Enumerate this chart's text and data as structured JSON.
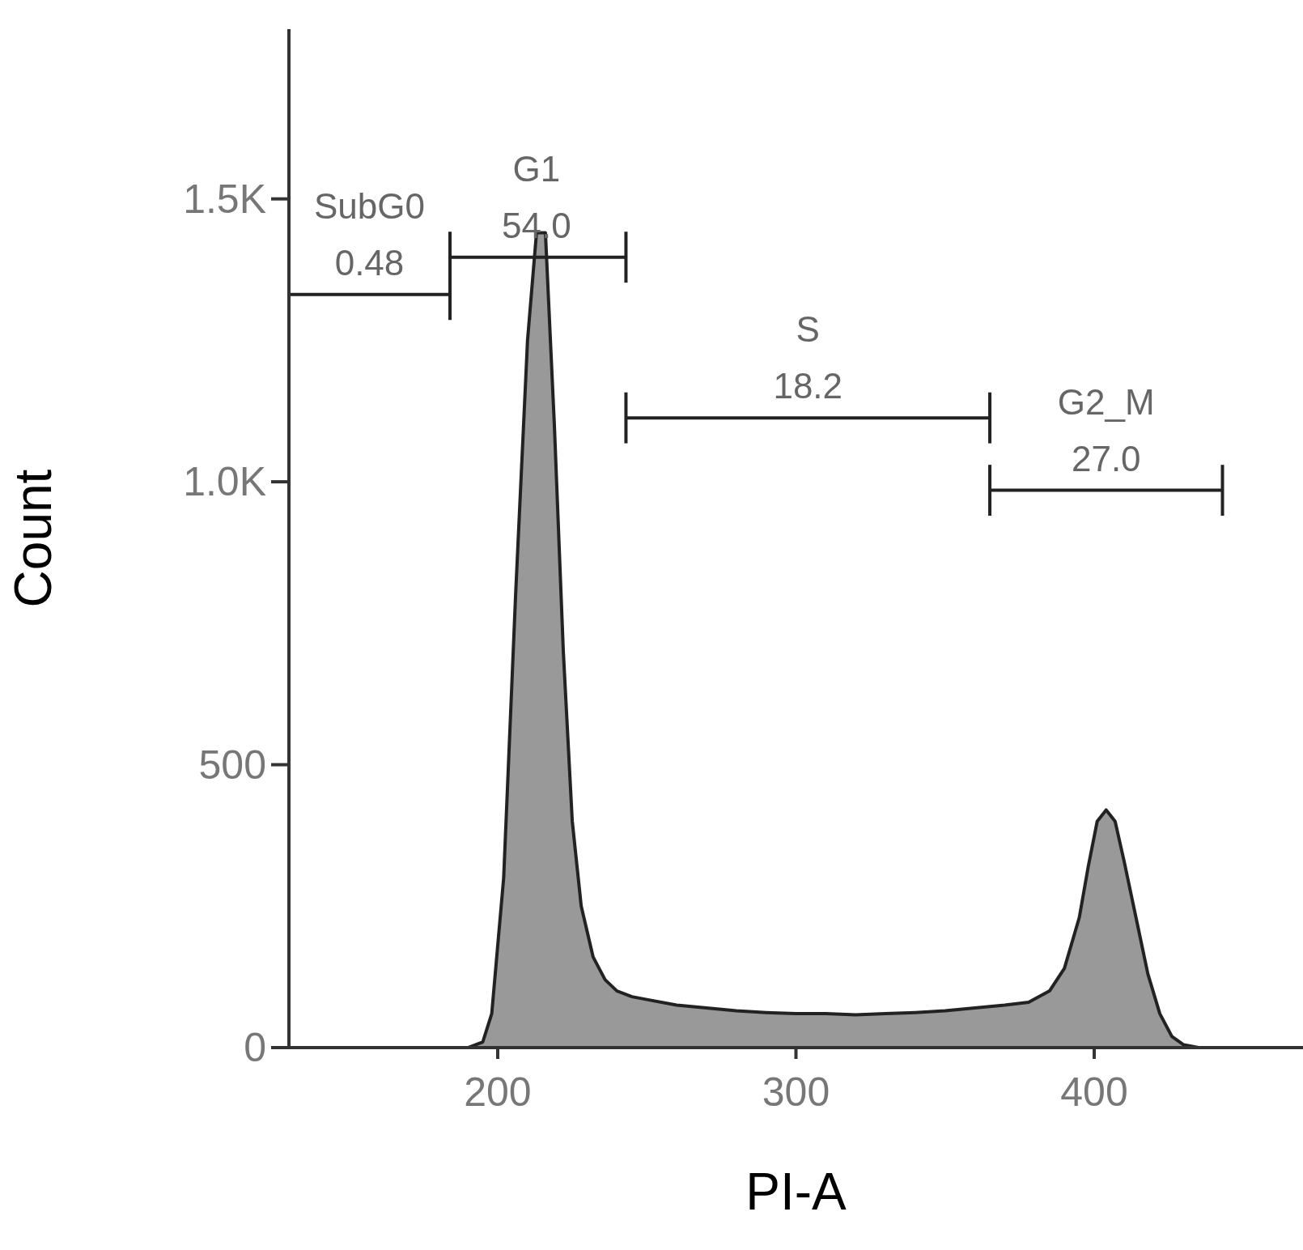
{
  "chart_data": {
    "type": "area",
    "xlabel": "PI-A",
    "ylabel": "Count",
    "x": [
      130,
      190,
      195,
      198,
      202,
      206,
      210,
      213,
      216,
      219,
      222,
      225,
      228,
      232,
      236,
      240,
      245,
      250,
      260,
      270,
      280,
      290,
      300,
      310,
      320,
      330,
      340,
      350,
      360,
      370,
      378,
      385,
      390,
      395,
      398,
      401,
      404,
      407,
      410,
      414,
      418,
      422,
      426,
      430,
      435,
      470
    ],
    "values": [
      0,
      0,
      10,
      60,
      300,
      800,
      1250,
      1440,
      1440,
      1100,
      700,
      400,
      250,
      160,
      120,
      100,
      90,
      85,
      75,
      70,
      65,
      62,
      60,
      60,
      58,
      60,
      62,
      65,
      70,
      75,
      80,
      100,
      140,
      230,
      320,
      400,
      420,
      400,
      330,
      230,
      130,
      60,
      20,
      5,
      0,
      0
    ],
    "color": "#999999",
    "series": [
      {
        "type": "line",
        "x": [
          130,
          184
        ],
        "values": [
          1331,
          1331
        ],
        "errors": [
          null,
          45
        ],
        "color": "#222222"
      },
      {
        "type": "line",
        "x": [
          184,
          243
        ],
        "values": [
          1397,
          1397
        ],
        "errors": [
          45,
          45
        ],
        "color": "#222222"
      },
      {
        "type": "line",
        "x": [
          243,
          365
        ],
        "values": [
          1113,
          1113
        ],
        "errors": [
          45,
          45
        ],
        "color": "#222222"
      },
      {
        "type": "line",
        "x": [
          365,
          443
        ],
        "values": [
          985,
          985
        ],
        "errors": [
          45,
          45
        ],
        "color": "#222222"
      }
    ],
    "xlim": [
      130,
      470
    ],
    "xticks": [
      200,
      300,
      400
    ],
    "ylim": [
      0,
      1800
    ],
    "yticks": [
      0,
      500,
      {
        "value": 1000,
        "label": "1.0K"
      },
      {
        "value": 1500,
        "label": "1.5K"
      }
    ],
    "annotations": [
      {
        "text": "SubG0\n0.48",
        "x": 157,
        "y": 1331
      },
      {
        "text": "G1\n54.0",
        "x": 213,
        "y": 1397
      },
      {
        "text": "S\n18.2",
        "x": 304,
        "y": 1113
      },
      {
        "text": "G2_M\n27.0",
        "x": 404,
        "y": 985
      }
    ]
  }
}
